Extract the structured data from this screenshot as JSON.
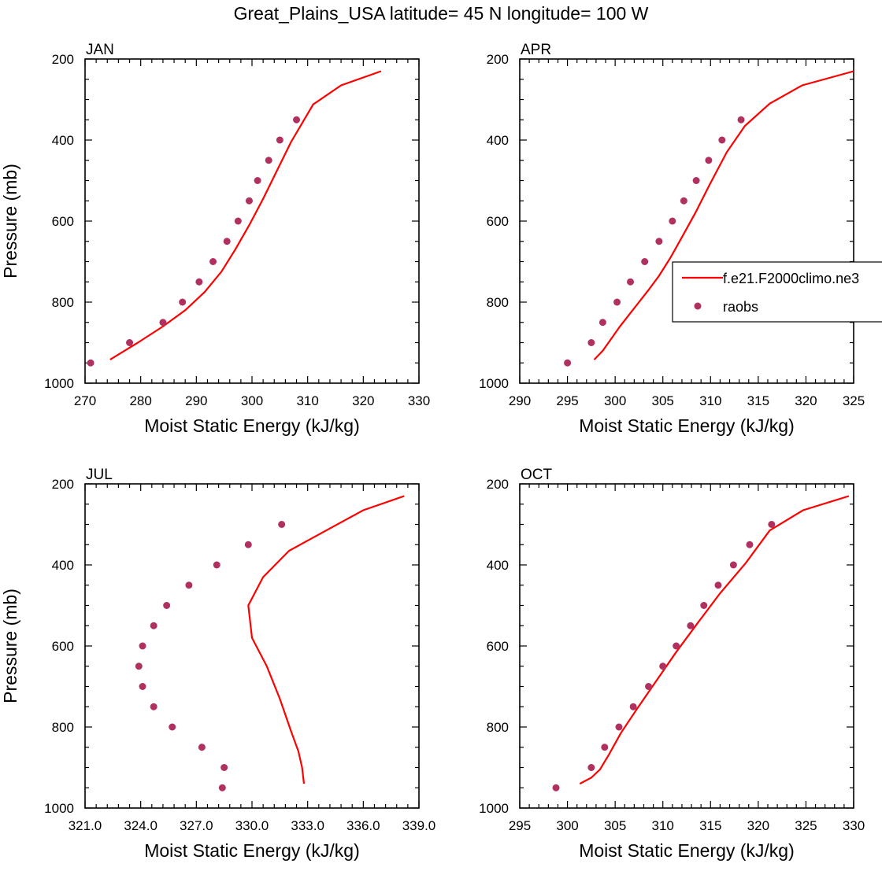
{
  "figure": {
    "title": "Great_Plains_USA  latitude= 45 N longitude= 100 W"
  },
  "colors": {
    "model_line": "#ff0000",
    "raobs_marker": "#b03060",
    "axes": "#000000"
  },
  "chart_data": [
    {
      "type": "line",
      "panel_label": "JAN",
      "xlabel": "Moist Static Energy (kJ/kg)",
      "ylabel": "Pressure (mb)",
      "xlim": [
        270,
        330
      ],
      "ylim": [
        1000,
        200
      ],
      "xticks": [
        270,
        280,
        290,
        300,
        310,
        320,
        330
      ],
      "xtick_labels": [
        "270",
        "280",
        "290",
        "300",
        "310",
        "320",
        "330"
      ],
      "yticks": [
        200,
        400,
        600,
        800,
        1000
      ],
      "ytick_labels": [
        "200",
        "400",
        "600",
        "800",
        "1000"
      ],
      "grid": false,
      "series": [
        {
          "kind": "line",
          "x": [
            274.5,
            279.5,
            284.0,
            288.0,
            291.5,
            294.5,
            297.0,
            299.5,
            302.0,
            304.5,
            307.0,
            311.0,
            316.0,
            323.2
          ],
          "y": [
            942,
            900,
            860,
            820,
            775,
            725,
            670,
            610,
            545,
            475,
            405,
            312,
            265,
            230
          ]
        },
        {
          "kind": "scatter",
          "x": [
            271.0,
            278.0,
            284.0,
            287.5,
            290.5,
            293.0,
            295.5,
            297.5,
            299.5,
            301.0,
            303.0,
            305.0,
            308.0
          ],
          "y": [
            950,
            900,
            850,
            800,
            750,
            700,
            650,
            600,
            550,
            500,
            450,
            400,
            350
          ]
        }
      ]
    },
    {
      "type": "line",
      "panel_label": "APR",
      "xlabel": "Moist Static Energy (kJ/kg)",
      "ylabel": "",
      "xlim": [
        290,
        325
      ],
      "ylim": [
        1000,
        200
      ],
      "xticks": [
        290,
        295,
        300,
        305,
        310,
        315,
        320,
        325
      ],
      "xtick_labels": [
        "290",
        "295",
        "300",
        "305",
        "310",
        "315",
        "320",
        "325"
      ],
      "yticks": [
        200,
        400,
        600,
        800,
        1000
      ],
      "ytick_labels": [
        "200",
        "400",
        "600",
        "800",
        "1000"
      ],
      "grid": false,
      "legend": {
        "placement": "right",
        "entries": [
          {
            "label": "f.e21.F2000climo.ne3",
            "kind": "line"
          },
          {
            "label": "raobs",
            "kind": "marker"
          }
        ]
      },
      "series": [
        {
          "kind": "line",
          "x": [
            297.8,
            298.7,
            299.6,
            300.5,
            301.5,
            302.5,
            303.5,
            304.6,
            305.8,
            307.0,
            308.4,
            309.9,
            311.7,
            313.6,
            316.2,
            319.6,
            325.0
          ],
          "y": [
            942,
            920,
            890,
            860,
            830,
            800,
            770,
            735,
            690,
            640,
            580,
            510,
            430,
            365,
            310,
            265,
            230
          ]
        },
        {
          "kind": "scatter",
          "x": [
            295.0,
            297.5,
            298.7,
            300.2,
            301.6,
            303.1,
            304.6,
            306.0,
            307.2,
            308.5,
            309.8,
            311.2,
            313.2
          ],
          "y": [
            950,
            900,
            850,
            800,
            750,
            700,
            650,
            600,
            550,
            500,
            450,
            400,
            350
          ]
        }
      ]
    },
    {
      "type": "line",
      "panel_label": "JUL",
      "xlabel": "Moist Static Energy (kJ/kg)",
      "ylabel": "Pressure (mb)",
      "xlim": [
        321,
        339
      ],
      "ylim": [
        1000,
        200
      ],
      "xticks": [
        321,
        324,
        327,
        330,
        333,
        336,
        339
      ],
      "xtick_labels": [
        "321.0",
        "324.0",
        "327.0",
        "330.0",
        "333.0",
        "336.0",
        "339.0"
      ],
      "yticks": [
        200,
        400,
        600,
        800,
        1000
      ],
      "ytick_labels": [
        "200",
        "400",
        "600",
        "800",
        "1000"
      ],
      "grid": false,
      "series": [
        {
          "kind": "line",
          "x": [
            332.8,
            332.7,
            332.5,
            332.1,
            331.5,
            330.8,
            330.0,
            329.8,
            330.6,
            332.0,
            334.0,
            336.0,
            338.2
          ],
          "y": [
            940,
            900,
            860,
            810,
            730,
            650,
            580,
            500,
            430,
            365,
            315,
            265,
            230
          ]
        },
        {
          "kind": "scatter",
          "x": [
            328.4,
            328.5,
            327.3,
            325.7,
            324.7,
            324.1,
            323.9,
            324.1,
            324.7,
            325.4,
            326.6,
            328.1,
            329.8,
            331.6
          ],
          "y": [
            950,
            900,
            850,
            800,
            750,
            700,
            650,
            600,
            550,
            500,
            450,
            400,
            350,
            300
          ]
        }
      ]
    },
    {
      "type": "line",
      "panel_label": "OCT",
      "xlabel": "Moist Static Energy (kJ/kg)",
      "ylabel": "",
      "xlim": [
        295,
        330
      ],
      "ylim": [
        1000,
        200
      ],
      "xticks": [
        295,
        300,
        305,
        310,
        315,
        320,
        325,
        330
      ],
      "xtick_labels": [
        "295",
        "300",
        "305",
        "310",
        "315",
        "320",
        "325",
        "330"
      ],
      "yticks": [
        200,
        400,
        600,
        800,
        1000
      ],
      "ytick_labels": [
        "200",
        "400",
        "600",
        "800",
        "1000"
      ],
      "grid": false,
      "series": [
        {
          "kind": "line",
          "x": [
            301.3,
            302.5,
            303.4,
            304.3,
            305.6,
            307.3,
            309.2,
            311.4,
            313.6,
            316.0,
            318.7,
            321.2,
            324.7,
            329.5
          ],
          "y": [
            940,
            925,
            905,
            870,
            815,
            755,
            690,
            615,
            545,
            470,
            395,
            315,
            265,
            230
          ]
        },
        {
          "kind": "scatter",
          "x": [
            298.8,
            302.5,
            303.9,
            305.4,
            306.9,
            308.5,
            310.0,
            311.4,
            312.9,
            314.3,
            315.8,
            317.4,
            319.1,
            321.4
          ],
          "y": [
            950,
            900,
            850,
            800,
            750,
            700,
            650,
            600,
            550,
            500,
            450,
            400,
            350,
            300
          ]
        }
      ]
    }
  ]
}
